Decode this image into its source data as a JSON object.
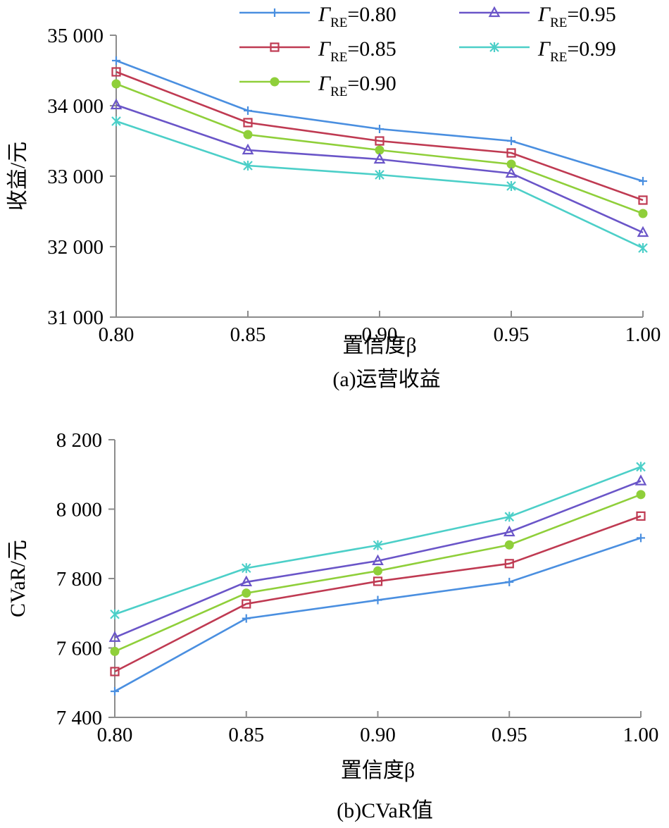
{
  "colors": {
    "s080": "#4a8fe0",
    "s085": "#bf3a52",
    "s090": "#8fcf3a",
    "s095": "#6a55c8",
    "s099": "#4ccfc8",
    "axis": "#8c8c8c"
  },
  "legend": {
    "position": "top",
    "items": [
      {
        "key": "s080",
        "symbol": "Γ",
        "sub": "RE",
        "value": "=0.80",
        "marker": "plus"
      },
      {
        "key": "s085",
        "symbol": "Γ",
        "sub": "RE",
        "value": "=0.85",
        "marker": "square"
      },
      {
        "key": "s090",
        "symbol": "Γ",
        "sub": "RE",
        "value": "=0.90",
        "marker": "circle"
      },
      {
        "key": "s095",
        "symbol": "Γ",
        "sub": "RE",
        "value": "=0.95",
        "marker": "triangle"
      },
      {
        "key": "s099",
        "symbol": "Γ",
        "sub": "RE",
        "value": "=0.99",
        "marker": "star"
      }
    ]
  },
  "chart_data": [
    {
      "type": "line",
      "caption": "(a)运营收益",
      "xlabel": "置信度β",
      "ylabel": "收益/元",
      "x": [
        0.8,
        0.85,
        0.9,
        0.95,
        1.0
      ],
      "x_tick_labels": [
        "0.80",
        "0.85",
        "0.90",
        "0.95",
        "1.00"
      ],
      "ylim": [
        31000,
        35000
      ],
      "y_ticks": [
        31000,
        32000,
        33000,
        34000,
        35000
      ],
      "y_tick_labels": [
        "31 000",
        "32 000",
        "33 000",
        "34 000",
        "35 000"
      ],
      "grid": false,
      "series": [
        {
          "key": "s080",
          "values": [
            34640,
            33930,
            33670,
            33500,
            32930
          ]
        },
        {
          "key": "s085",
          "values": [
            34480,
            33760,
            33500,
            33330,
            32660
          ]
        },
        {
          "key": "s090",
          "values": [
            34310,
            33590,
            33370,
            33170,
            32470
          ]
        },
        {
          "key": "s095",
          "values": [
            34010,
            33370,
            33240,
            33040,
            32200
          ]
        },
        {
          "key": "s099",
          "values": [
            33780,
            33150,
            33020,
            32860,
            31980
          ]
        }
      ]
    },
    {
      "type": "line",
      "caption": "(b)CVaR值",
      "xlabel": "置信度β",
      "ylabel": "CVaR/元",
      "x": [
        0.8,
        0.85,
        0.9,
        0.95,
        1.0
      ],
      "x_tick_labels": [
        "0.80",
        "0.85",
        "0.90",
        "0.95",
        "1.00"
      ],
      "ylim": [
        7400,
        8200
      ],
      "y_ticks": [
        7400,
        7600,
        7800,
        8000,
        8200
      ],
      "y_tick_labels": [
        "7 400",
        "7 600",
        "7 800",
        "8 000",
        "8 200"
      ],
      "grid": false,
      "series": [
        {
          "key": "s080",
          "values": [
            7475,
            7685,
            7738,
            7790,
            7917
          ]
        },
        {
          "key": "s085",
          "values": [
            7532,
            7727,
            7792,
            7843,
            7980
          ]
        },
        {
          "key": "s090",
          "values": [
            7590,
            7758,
            7822,
            7897,
            8042
          ]
        },
        {
          "key": "s095",
          "values": [
            7630,
            7790,
            7851,
            7934,
            8081
          ]
        },
        {
          "key": "s099",
          "values": [
            7697,
            7830,
            7896,
            7978,
            8122
          ]
        }
      ]
    }
  ]
}
